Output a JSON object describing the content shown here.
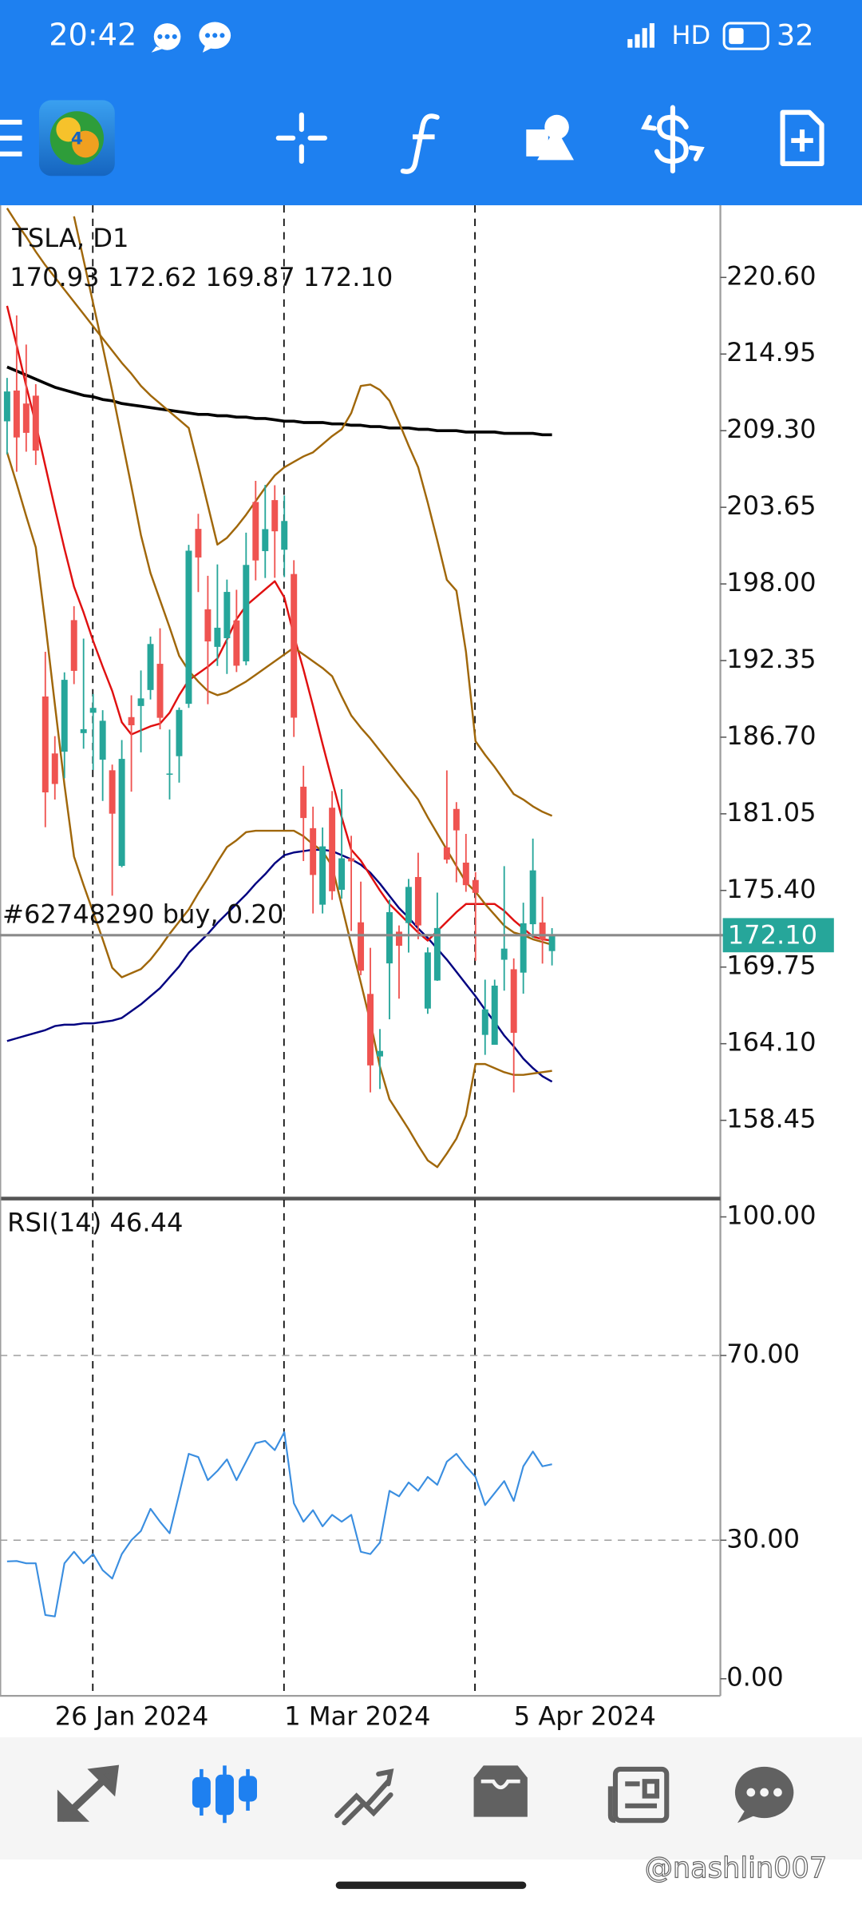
{
  "status_bar": {
    "time": "20:42",
    "network": "HD",
    "battery": "32"
  },
  "chart_data": [
    {
      "type": "candlestick",
      "title": "TSLA, D1",
      "subtitle": "170.93 172.62 169.87 172.10",
      "categories": [
        null,
        null,
        null,
        null,
        null,
        "26 Jan 2024",
        null,
        null,
        null,
        null,
        null,
        null,
        null,
        null,
        null,
        null,
        null,
        null,
        null,
        null,
        null,
        null,
        null,
        null,
        null,
        null,
        null,
        null,
        null,
        "1 Mar 2024",
        null,
        null,
        null,
        null,
        null,
        null,
        null,
        null,
        null,
        null,
        null,
        null,
        null,
        null,
        null,
        null,
        null,
        null,
        null,
        null,
        null,
        null,
        null,
        "5 Apr 2024",
        null,
        null,
        null,
        null
      ],
      "open": [
        209.99,
        212.26,
        211.3,
        211.88,
        189.7,
        185.5,
        185.63,
        195.33,
        187.0,
        188.5,
        185.04,
        184.26,
        177.21,
        188.18,
        189.0,
        190.18,
        192.11,
        183.99,
        185.3,
        189.16,
        202.06,
        196.13,
        193.36,
        194.0,
        195.31,
        192.29,
        204.04,
        200.42,
        204.18,
        200.52,
        198.73,
        183.05,
        179.99,
        174.35,
        181.5,
        175.45,
        177.77,
        173.05,
        167.77,
        163.16,
        170.02,
        172.36,
        173.0,
        176.39,
        166.69,
        168.76,
        178.58,
        181.41,
        177.45,
        176.17,
        164.75,
        164.02,
        170.29,
        169.59,
        169.34,
        172.91,
        173.04,
        170.93
      ],
      "high": [
        213.19,
        217.8,
        215.65,
        212.73,
        193.0,
        186.78,
        191.48,
        196.36,
        193.97,
        189.88,
        188.69,
        184.68,
        186.49,
        189.79,
        191.62,
        194.12,
        194.73,
        187.26,
        188.89,
        200.88,
        203.17,
        198.6,
        199.44,
        198.32,
        197.57,
        201.78,
        205.6,
        205.3,
        205.28,
        204.52,
        199.75,
        184.59,
        181.58,
        180.04,
        182.73,
        182.87,
        179.43,
        176.05,
        171.17,
        165.18,
        174.72,
        172.82,
        176.25,
        178.18,
        171.2,
        175.24,
        184.25,
        181.91,
        179.57,
        176.75,
        168.82,
        168.82,
        177.19,
        170.39,
        174.5,
        179.22,
        174.93,
        172.62
      ],
      "low": [
        207.56,
        206.27,
        207.75,
        206.77,
        180.06,
        182.1,
        183.67,
        190.61,
        185.85,
        184.28,
        182.0,
        175.01,
        177.11,
        182.68,
        185.58,
        189.48,
        187.28,
        182.11,
        183.35,
        188.86,
        197.4,
        189.13,
        191.95,
        191.36,
        191.5,
        192.0,
        198.26,
        198.44,
        198.45,
        198.5,
        186.72,
        177.57,
        173.7,
        173.7,
        174.7,
        174.8,
        172.41,
        169.15,
        160.51,
        160.76,
        165.9,
        167.42,
        170.82,
        171.8,
        166.3,
        168.73,
        177.38,
        176.0,
        175.3,
        170.21,
        163.28,
        164.11,
        168.01,
        160.51,
        167.79,
        171.92,
        170.01,
        169.87
      ],
      "close": [
        212.19,
        208.8,
        209.14,
        207.83,
        182.63,
        183.25,
        190.93,
        191.59,
        187.29,
        188.86,
        187.91,
        181.06,
        185.1,
        187.58,
        189.56,
        193.57,
        188.13,
        184.02,
        188.71,
        200.45,
        199.95,
        193.76,
        194.77,
        197.41,
        191.97,
        199.4,
        199.73,
        202.04,
        201.88,
        202.64,
        188.14,
        180.74,
        176.54,
        178.65,
        175.34,
        177.77,
        177.54,
        169.48,
        162.5,
        163.57,
        173.8,
        171.32,
        175.66,
        172.82,
        170.83,
        172.63,
        177.67,
        179.83,
        175.79,
        175.22,
        166.63,
        168.38,
        171.11,
        164.9,
        172.98,
        176.88,
        171.76,
        172.1
      ],
      "up_color": "#26a69a",
      "down_color": "#ef5350",
      "series": [
        {
          "color": "#000000",
          "values": [
            214.0,
            213.7,
            213.4,
            213.1,
            212.8,
            212.5,
            212.3,
            212.1,
            211.9,
            211.8,
            211.6,
            211.5,
            211.3,
            211.2,
            211.1,
            211.0,
            210.9,
            210.8,
            210.7,
            210.6,
            210.5,
            210.5,
            210.4,
            210.4,
            210.3,
            210.3,
            210.2,
            210.2,
            210.1,
            210.0,
            210.0,
            209.9,
            209.9,
            209.9,
            209.8,
            209.8,
            209.7,
            209.7,
            209.6,
            209.6,
            209.5,
            209.5,
            209.5,
            209.4,
            209.4,
            209.3,
            209.3,
            209.3,
            209.2,
            209.2,
            209.2,
            209.2,
            209.1,
            209.1,
            209.1,
            209.1,
            209.0,
            209.0
          ]
        },
        {
          "color": "#000080",
          "values": [
            164.3,
            164.5,
            164.7,
            164.9,
            165.1,
            165.4,
            165.5,
            165.5,
            165.6,
            165.6,
            165.7,
            165.8,
            166.0,
            166.5,
            167.0,
            167.6,
            168.2,
            169.0,
            169.8,
            170.8,
            171.5,
            172.2,
            173.0,
            173.7,
            174.4,
            175.1,
            175.9,
            176.6,
            177.4,
            178.0,
            178.2,
            178.3,
            178.4,
            178.4,
            178.3,
            178.0,
            177.7,
            177.3,
            176.7,
            175.9,
            175.0,
            174.1,
            173.4,
            172.6,
            171.9,
            171.1,
            170.3,
            169.4,
            168.5,
            167.6,
            166.6,
            165.7,
            164.7,
            163.9,
            163.0,
            162.3,
            161.7,
            161.3
          ]
        },
        {
          "color": "#e01010",
          "values": [
            218.5,
            215.6,
            212.6,
            209.8,
            206.7,
            203.6,
            200.6,
            197.8,
            195.9,
            193.8,
            191.9,
            190.1,
            187.8,
            186.9,
            187.2,
            187.5,
            187.7,
            188.5,
            189.8,
            190.9,
            191.4,
            191.9,
            192.5,
            193.9,
            195.4,
            196.4,
            197.0,
            197.6,
            198.2,
            197.0,
            194.2,
            191.7,
            189.0,
            186.2,
            183.5,
            180.8,
            178.4,
            177.6,
            176.5,
            175.4,
            174.4,
            173.7,
            173.0,
            172.3,
            171.7,
            172.4,
            173.1,
            173.8,
            174.4,
            174.4,
            174.4,
            174.4,
            173.9,
            173.2,
            172.6,
            172.0,
            171.8,
            171.7
          ]
        },
        {
          "color": "#a0670a",
          "values": [
            225.7,
            224.6,
            223.6,
            222.5,
            221.5,
            220.6,
            219.7,
            218.8,
            217.9,
            217.0,
            216.1,
            215.2,
            214.3,
            213.5,
            212.6,
            211.9,
            211.3,
            210.7,
            210.1,
            209.5,
            206.7,
            203.8,
            200.9,
            201.4,
            202.2,
            203.1,
            204.1,
            205.1,
            206.0,
            206.6,
            207.0,
            207.4,
            207.7,
            208.3,
            208.9,
            209.4,
            210.6,
            212.6,
            212.7,
            212.3,
            211.5,
            209.9,
            208.2,
            206.6,
            204.0,
            201.2,
            198.3,
            197.5,
            193.0,
            186.4,
            185.4,
            184.5,
            183.5,
            182.5,
            182.1,
            181.6,
            181.2,
            180.9
          ]
        },
        {
          "color": "#a0670a",
          "values": [
            null,
            null,
            null,
            null,
            null,
            null,
            null,
            225.1,
            221.9,
            218.7,
            215.5,
            212.2,
            208.7,
            205.2,
            201.6,
            198.8,
            196.8,
            194.8,
            192.7,
            191.6,
            190.8,
            190.1,
            189.8,
            190.0,
            190.4,
            190.8,
            191.3,
            191.8,
            192.3,
            192.8,
            193.3,
            192.8,
            192.3,
            191.8,
            191.2,
            189.7,
            188.3,
            187.4,
            186.6,
            185.7,
            184.8,
            183.9,
            183.0,
            182.1,
            180.8,
            179.6,
            178.4,
            177.2,
            176.0,
            175.3,
            174.4,
            173.6,
            172.8,
            172.3,
            172.1,
            171.8,
            171.6,
            171.4
          ]
        },
        {
          "color": "#a0670a",
          "values": [
            207.7,
            205.4,
            203.0,
            200.7,
            195.1,
            189.1,
            183.2,
            177.9,
            175.8,
            173.8,
            171.8,
            169.7,
            169.0,
            169.3,
            169.6,
            170.3,
            171.2,
            172.2,
            173.1,
            174.0,
            175.2,
            176.3,
            177.5,
            178.6,
            179.1,
            179.7,
            179.8,
            179.8,
            179.8,
            179.8,
            179.8,
            179.4,
            178.8,
            178.3,
            177.2,
            174.3,
            171.4,
            168.6,
            165.7,
            162.4,
            160.0,
            158.9,
            157.8,
            156.6,
            155.5,
            155.0,
            156.0,
            157.1,
            158.8,
            162.6,
            162.6,
            162.3,
            162.0,
            161.8,
            161.8,
            161.9,
            162.0,
            162.1
          ]
        }
      ],
      "ylim": [
        152.77,
        225.92
      ],
      "yticks": [
        {
          "value": 220.6,
          "label": "220.60"
        },
        {
          "value": 214.95,
          "label": "214.95"
        },
        {
          "value": 209.3,
          "label": "209.30"
        },
        {
          "value": 203.65,
          "label": "203.65"
        },
        {
          "value": 198,
          "label": "198.00"
        },
        {
          "value": 192.35,
          "label": "192.35"
        },
        {
          "value": 186.7,
          "label": "186.70"
        },
        {
          "value": 181.05,
          "label": "181.05"
        },
        {
          "value": 175.4,
          "label": "175.40"
        },
        {
          "value": 169.75,
          "label": "169.75"
        },
        {
          "value": 164.1,
          "label": "164.10"
        },
        {
          "value": 158.45,
          "label": "158.45"
        }
      ],
      "price_label": {
        "value": 172.1,
        "label": "172.10"
      },
      "order_line": {
        "label": "#62748290 buy, 0.20",
        "price": 172.1
      }
    },
    {
      "type": "line",
      "title": "RSI(14) 46.44",
      "color": "#3a8ee0",
      "values": [
        25.4,
        25.5,
        25,
        25,
        13.8,
        13.5,
        25,
        27.5,
        25,
        27,
        23.5,
        21.7,
        27,
        30,
        32,
        36.8,
        34,
        31.5,
        40,
        48.7,
        48,
        43,
        45,
        47.5,
        43,
        47,
        51,
        51.5,
        49.5,
        53.4,
        38,
        34,
        36.5,
        33,
        35.5,
        34,
        35.5,
        27.5,
        27,
        29.5,
        40.7,
        39.5,
        42.5,
        40.7,
        43.7,
        42,
        47,
        48.7,
        46,
        43.7,
        37.6,
        40.2,
        42.8,
        38.5,
        46,
        49.2,
        46,
        46.44
      ],
      "ylim": [
        -3.7,
        103.7
      ],
      "yticks": [
        {
          "value": 100,
          "label": "100.00"
        },
        {
          "value": 70,
          "label": "70.00"
        },
        {
          "value": 30,
          "label": "30.00"
        },
        {
          "value": 0,
          "label": "0.00"
        }
      ],
      "levels": [
        70,
        30
      ]
    }
  ],
  "watermark": "@nashlin007"
}
